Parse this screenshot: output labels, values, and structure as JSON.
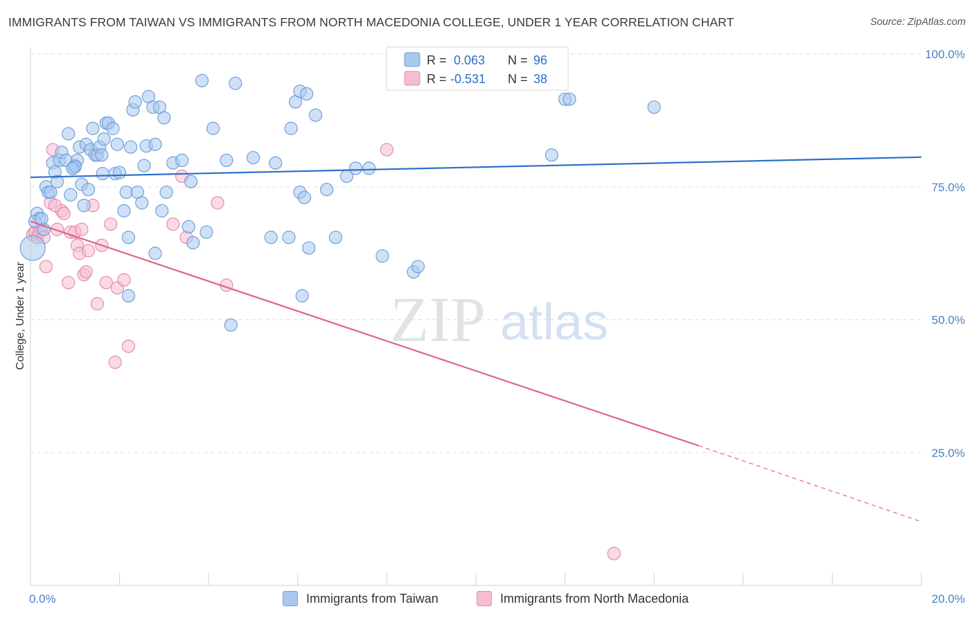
{
  "colors": {
    "taiwan_fill": "#a9c8ee",
    "taiwan_stroke": "#6d9fdc",
    "taiwan_line": "#2a6fca",
    "macedonia_fill": "#f6bcd0",
    "macedonia_stroke": "#e58cab",
    "macedonia_line": "#e06292",
    "tick_text": "#4a7fc8",
    "grid": "#dddddd"
  },
  "chart_data": {
    "type": "scatter",
    "title": "IMMIGRANTS FROM TAIWAN VS IMMIGRANTS FROM NORTH MACEDONIA COLLEGE, UNDER 1 YEAR CORRELATION CHART",
    "source": "Source: ZipAtlas.com",
    "watermark": {
      "zip": "ZIP",
      "atlas": "atlas"
    },
    "xlabel": "",
    "ylabel": "College, Under 1 year",
    "xlim": [
      0,
      20
    ],
    "ylim": [
      0,
      100
    ],
    "x_tick_labels": [
      {
        "value": 0,
        "label": "0.0%"
      },
      {
        "value": 20,
        "label": "20.0%"
      }
    ],
    "y_tick_labels": [
      {
        "value": 25,
        "label": "25.0%"
      },
      {
        "value": 50,
        "label": "50.0%"
      },
      {
        "value": 75,
        "label": "75.0%"
      },
      {
        "value": 100,
        "label": "100.0%"
      }
    ],
    "grid": true,
    "legend_position": "top-center",
    "legend": [
      {
        "series": "Immigrants from Taiwan",
        "r_label": "R =",
        "r_value": "0.063",
        "n_label": "N =",
        "n_value": "96"
      },
      {
        "series": "Immigrants from North Macedonia",
        "r_label": "R =",
        "r_value": "-0.531",
        "n_label": "N =",
        "n_value": "38"
      }
    ],
    "series": [
      {
        "name": "Immigrants from Taiwan",
        "trend": {
          "x0": 0,
          "y0": 76.8,
          "x1": 20,
          "y1": 80.6
        },
        "points": [
          [
            0.05,
            63.5
          ],
          [
            0.15,
            70
          ],
          [
            0.2,
            69
          ],
          [
            0.3,
            67
          ],
          [
            0.35,
            75
          ],
          [
            0.4,
            74
          ],
          [
            0.45,
            74
          ],
          [
            0.5,
            79.5
          ],
          [
            0.55,
            77.8
          ],
          [
            0.6,
            76
          ],
          [
            0.65,
            80
          ],
          [
            0.7,
            81.5
          ],
          [
            0.8,
            80
          ],
          [
            0.85,
            85
          ],
          [
            0.9,
            73.5
          ],
          [
            0.95,
            78.5
          ],
          [
            1.0,
            79
          ],
          [
            1.05,
            80
          ],
          [
            1.1,
            82.5
          ],
          [
            1.15,
            75.5
          ],
          [
            1.2,
            71.5
          ],
          [
            1.25,
            83
          ],
          [
            1.3,
            74.5
          ],
          [
            1.35,
            82
          ],
          [
            1.4,
            86
          ],
          [
            1.45,
            81
          ],
          [
            1.5,
            81
          ],
          [
            1.55,
            82.5
          ],
          [
            1.6,
            81
          ],
          [
            1.62,
            77.5
          ],
          [
            1.65,
            84
          ],
          [
            1.7,
            87
          ],
          [
            1.75,
            87
          ],
          [
            1.85,
            86
          ],
          [
            1.9,
            77.5
          ],
          [
            1.95,
            83
          ],
          [
            2.0,
            77.7
          ],
          [
            2.1,
            70.5
          ],
          [
            2.15,
            74
          ],
          [
            2.2,
            65.5
          ],
          [
            2.25,
            82.5
          ],
          [
            2.3,
            89.5
          ],
          [
            2.35,
            91
          ],
          [
            2.4,
            74
          ],
          [
            2.5,
            72
          ],
          [
            2.55,
            79
          ],
          [
            2.6,
            82.7
          ],
          [
            2.65,
            92
          ],
          [
            2.75,
            90
          ],
          [
            2.8,
            83
          ],
          [
            2.9,
            90
          ],
          [
            2.95,
            70.5
          ],
          [
            3.0,
            88
          ],
          [
            3.05,
            74
          ],
          [
            3.85,
            95
          ],
          [
            2.2,
            54.5
          ],
          [
            2.8,
            62.5
          ],
          [
            3.2,
            79.5
          ],
          [
            3.4,
            80
          ],
          [
            3.55,
            67.5
          ],
          [
            3.6,
            76
          ],
          [
            3.65,
            64.5
          ],
          [
            3.95,
            66.5
          ],
          [
            4.1,
            86
          ],
          [
            4.4,
            80
          ],
          [
            4.6,
            94.5
          ],
          [
            5.0,
            80.5
          ],
          [
            5.4,
            65.5
          ],
          [
            5.5,
            79.5
          ],
          [
            5.85,
            86
          ],
          [
            5.95,
            91
          ],
          [
            6.05,
            93
          ],
          [
            6.2,
            92.5
          ],
          [
            6.4,
            88.5
          ],
          [
            5.8,
            65.5
          ],
          [
            6.05,
            74
          ],
          [
            6.15,
            73
          ],
          [
            6.25,
            63.5
          ],
          [
            6.65,
            74.5
          ],
          [
            6.85,
            65.5
          ],
          [
            7.1,
            77
          ],
          [
            7.3,
            78.5
          ],
          [
            7.6,
            78.5
          ],
          [
            7.9,
            62
          ],
          [
            8.6,
            59
          ],
          [
            8.7,
            60
          ],
          [
            11.7,
            81
          ],
          [
            12.0,
            91.5
          ],
          [
            12.1,
            91.5
          ],
          [
            14.0,
            90
          ],
          [
            6.1,
            54.5
          ],
          [
            4.5,
            49
          ],
          [
            0.1,
            68.5
          ],
          [
            0.25,
            69
          ],
          [
            1.0,
            78.8
          ],
          [
            0.95,
            78.5
          ]
        ]
      },
      {
        "name": "Immigrants from North Macedonia",
        "trend": {
          "x0": 0,
          "y0": 68.5,
          "x1": 15,
          "y1": 26.3,
          "dash_to_x": 20,
          "dash_to_y": 12
        },
        "points": [
          [
            0.05,
            66
          ],
          [
            0.1,
            66.5
          ],
          [
            0.15,
            65.5
          ],
          [
            0.2,
            66.5
          ],
          [
            0.25,
            67
          ],
          [
            0.3,
            65.5
          ],
          [
            0.35,
            60
          ],
          [
            0.45,
            72
          ],
          [
            0.5,
            82
          ],
          [
            0.6,
            67
          ],
          [
            0.7,
            70.5
          ],
          [
            0.75,
            70
          ],
          [
            0.85,
            57
          ],
          [
            0.9,
            66.5
          ],
          [
            1.0,
            66.5
          ],
          [
            1.05,
            64
          ],
          [
            1.1,
            62.5
          ],
          [
            1.15,
            67
          ],
          [
            1.2,
            58.5
          ],
          [
            1.25,
            59
          ],
          [
            1.3,
            63
          ],
          [
            1.4,
            71.5
          ],
          [
            1.5,
            53
          ],
          [
            1.6,
            64
          ],
          [
            1.7,
            57
          ],
          [
            1.8,
            68
          ],
          [
            1.9,
            42
          ],
          [
            1.95,
            56
          ],
          [
            2.1,
            57.5
          ],
          [
            2.2,
            45
          ],
          [
            3.2,
            68
          ],
          [
            3.4,
            77
          ],
          [
            3.5,
            65.5
          ],
          [
            4.2,
            72
          ],
          [
            4.4,
            56.5
          ],
          [
            8.0,
            82
          ],
          [
            13.1,
            6
          ],
          [
            0.55,
            71.5
          ]
        ]
      }
    ]
  }
}
